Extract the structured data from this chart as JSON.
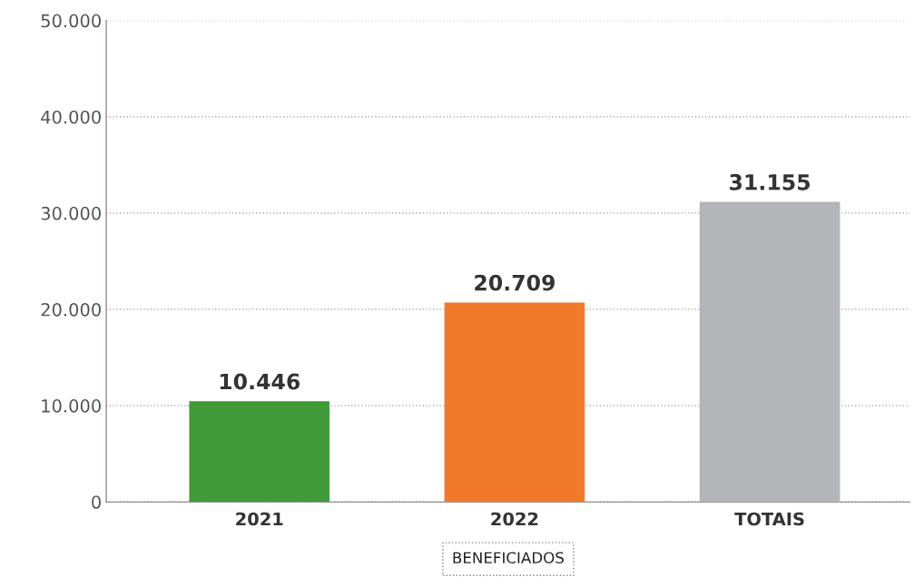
{
  "chart_data": {
    "type": "bar",
    "categories": [
      "2021",
      "2022",
      "TOTAIS"
    ],
    "values": [
      10446,
      20709,
      31155
    ],
    "colors": [
      "#3f9a3a",
      "#f07a2a",
      "#b4b5b8"
    ],
    "value_labels": [
      "10.446",
      "20.709",
      "31.155"
    ],
    "xlabel": "BENEFICIADOS",
    "ylim": [
      0,
      50000
    ],
    "yticks": [
      {
        "value": 0,
        "label": "0"
      },
      {
        "value": 10000,
        "label": "10.000"
      },
      {
        "value": 20000,
        "label": "20.000"
      },
      {
        "value": 30000,
        "label": "30.000"
      },
      {
        "value": 40000,
        "label": "40.000"
      },
      {
        "value": 50000,
        "label": "50.000"
      }
    ],
    "grid": "y"
  }
}
